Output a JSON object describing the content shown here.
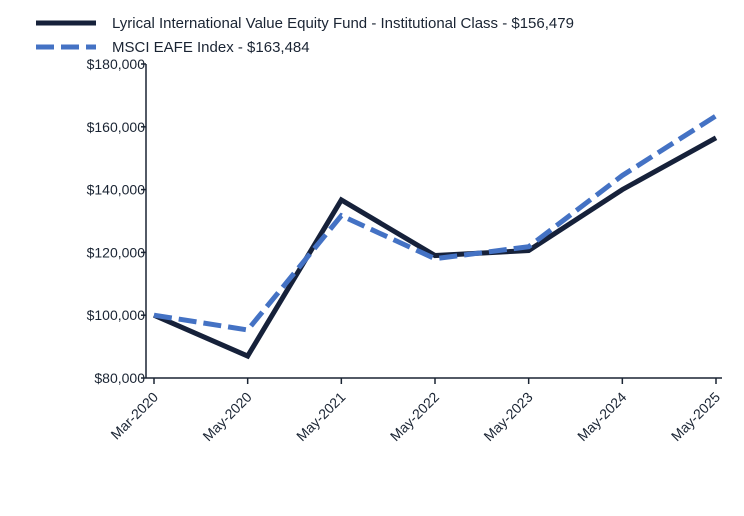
{
  "chart_data": {
    "type": "line",
    "title": "",
    "xlabel": "",
    "ylabel": "",
    "categories": [
      "Mar-2020",
      "May-2020",
      "May-2021",
      "May-2022",
      "May-2023",
      "May-2024",
      "May-2025"
    ],
    "ylim": [
      80000,
      180000
    ],
    "yticks": [
      80000,
      100000,
      120000,
      140000,
      160000,
      180000
    ],
    "ytick_labels": [
      "$80,000",
      "$100,000",
      "$120,000",
      "$140,000",
      "$160,000",
      "$180,000"
    ],
    "legend_position": "top-left",
    "grid": false,
    "series": [
      {
        "name": "Lyrical International Value Equity Fund - Institutional Class - $156,479",
        "color": "#16213a",
        "style": "solid",
        "values": [
          100000,
          87000,
          136700,
          119000,
          120600,
          140000,
          156479
        ]
      },
      {
        "name": "MSCI EAFE Index - $163,484",
        "color": "#4472c4",
        "style": "dashed",
        "values": [
          100000,
          95300,
          131700,
          118000,
          121800,
          144500,
          163484
        ]
      }
    ]
  }
}
